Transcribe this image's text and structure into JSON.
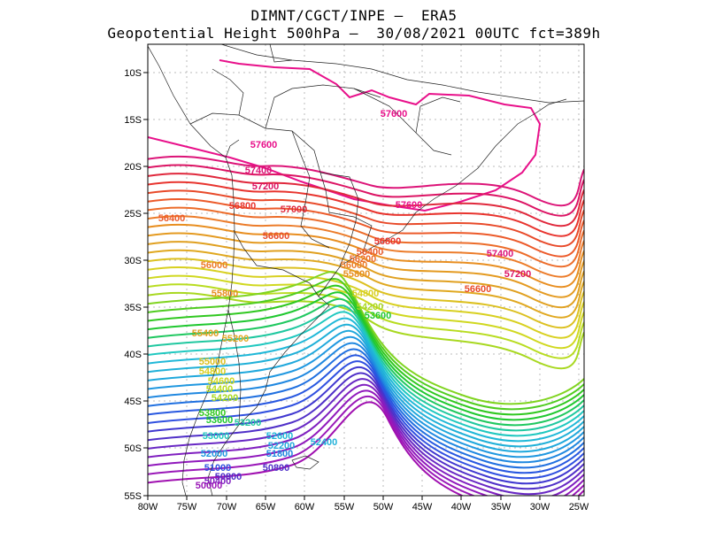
{
  "title": {
    "line1": "DIMNT/CGCT/INPE –  ERA5",
    "line2": "Geopotential Height 500hPa –  30/08/2021 00UTC fct=389h"
  },
  "axes": {
    "lon_labels": [
      "80W",
      "75W",
      "70W",
      "65W",
      "60W",
      "55W",
      "50W",
      "45W",
      "40W",
      "35W",
      "30W",
      "25W"
    ],
    "lat_labels": [
      "10S",
      "15S",
      "20S",
      "25S",
      "30S",
      "35S",
      "40S",
      "45S",
      "50S",
      "55S"
    ]
  },
  "contour_labels": [
    {
      "text": "57600",
      "color": "#e8108a"
    },
    {
      "text": "57600",
      "color": "#e8108a"
    },
    {
      "text": "57600",
      "color": "#e8108a"
    },
    {
      "text": "57400",
      "color": "#dc1478"
    },
    {
      "text": "57400",
      "color": "#dc1478"
    },
    {
      "text": "57200",
      "color": "#dc1464"
    },
    {
      "text": "57200",
      "color": "#dc1464"
    },
    {
      "text": "57000",
      "color": "#e0283c"
    },
    {
      "text": "56800",
      "color": "#e8342e"
    },
    {
      "text": "56800",
      "color": "#e8342e"
    },
    {
      "text": "56600",
      "color": "#e84a2a"
    },
    {
      "text": "56600",
      "color": "#e84a2a"
    },
    {
      "text": "56400",
      "color": "#ec5a2a"
    },
    {
      "text": "56400",
      "color": "#ec5a2a"
    },
    {
      "text": "56200",
      "color": "#ec6c2a"
    },
    {
      "text": "56000",
      "color": "#ec7c2a"
    },
    {
      "text": "56000",
      "color": "#ec7c2a"
    },
    {
      "text": "55800",
      "color": "#e88e20"
    },
    {
      "text": "55800",
      "color": "#e88e20"
    },
    {
      "text": "55400",
      "color": "#e0a020"
    },
    {
      "text": "55200",
      "color": "#e0a820"
    },
    {
      "text": "55000",
      "color": "#dcc020"
    },
    {
      "text": "54800",
      "color": "#d8d020"
    },
    {
      "text": "54800",
      "color": "#d8d020"
    },
    {
      "text": "54600",
      "color": "#d0d820"
    },
    {
      "text": "54400",
      "color": "#b8dc20"
    },
    {
      "text": "54200",
      "color": "#a8d820"
    },
    {
      "text": "54200",
      "color": "#a8d820"
    },
    {
      "text": "53800",
      "color": "#30c820"
    },
    {
      "text": "53600",
      "color": "#20c830"
    },
    {
      "text": "53600",
      "color": "#20c830"
    },
    {
      "text": "53200",
      "color": "#20c8a0"
    },
    {
      "text": "53000",
      "color": "#20c8c0"
    },
    {
      "text": "52600",
      "color": "#20b8d8"
    },
    {
      "text": "52400",
      "color": "#20b0d8"
    },
    {
      "text": "52200",
      "color": "#20a8dc"
    },
    {
      "text": "52000",
      "color": "#2098e0"
    },
    {
      "text": "51800",
      "color": "#2088e0"
    },
    {
      "text": "51000",
      "color": "#3050e0"
    },
    {
      "text": "50800",
      "color": "#5030c8"
    },
    {
      "text": "50800",
      "color": "#5030c8"
    },
    {
      "text": "50400",
      "color": "#8020c0"
    },
    {
      "text": "50000",
      "color": "#9a18b8"
    }
  ]
}
